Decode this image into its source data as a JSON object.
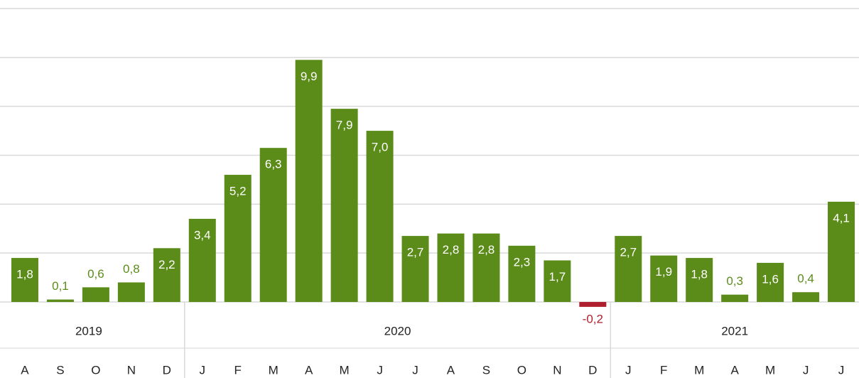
{
  "chart_data": {
    "type": "bar",
    "categories": [
      "A",
      "S",
      "O",
      "N",
      "D",
      "J",
      "F",
      "M",
      "A",
      "M",
      "J",
      "J",
      "A",
      "S",
      "O",
      "N",
      "D",
      "J",
      "F",
      "M",
      "A",
      "M",
      "J",
      "J"
    ],
    "values": [
      1.8,
      0.1,
      0.6,
      0.8,
      2.2,
      3.4,
      5.2,
      6.3,
      9.9,
      7.9,
      7.0,
      2.7,
      2.8,
      2.8,
      2.3,
      1.7,
      -0.2,
      2.7,
      1.9,
      1.8,
      0.3,
      1.6,
      0.4,
      4.1
    ],
    "value_labels": [
      "1,8",
      "0,1",
      "0,6",
      "0,8",
      "2,2",
      "3,4",
      "5,2",
      "6,3",
      "9,9",
      "7,9",
      "7,0",
      "2,7",
      "2,8",
      "2,8",
      "2,3",
      "1,7",
      "-0,2",
      "2,7",
      "1,9",
      "1,8",
      "0,3",
      "1,6",
      "0,4",
      "4,1"
    ],
    "color": "#5b8c1a",
    "negative_color": "#b01f2e",
    "groups": [
      {
        "label": "2019",
        "span": 5
      },
      {
        "label": "2020",
        "span": 12
      },
      {
        "label": "2021",
        "span": 7
      }
    ],
    "ylim": [
      0,
      12
    ],
    "yticks": [
      0,
      2,
      4,
      6,
      8,
      10,
      12
    ],
    "grid": true
  }
}
